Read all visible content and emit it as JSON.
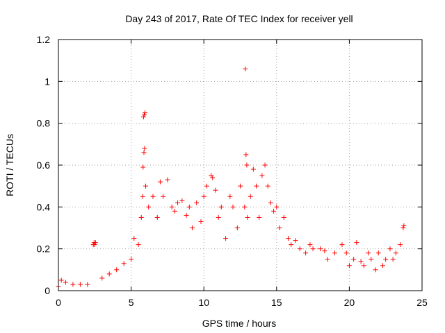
{
  "chart_data": {
    "type": "scatter",
    "title": "Day 243 of 2017, Rate Of TEC Index for receiver yell",
    "xlabel": "GPS time / hours",
    "ylabel": "ROTI / TECUs",
    "xlim": [
      0,
      25
    ],
    "ylim": [
      0,
      1.2
    ],
    "xticks": [
      "0",
      "5",
      "10",
      "15",
      "20",
      "25"
    ],
    "yticks": [
      "0",
      "0.2",
      "0.4",
      "0.6",
      "0.8",
      "1",
      "1.2"
    ],
    "grid": true,
    "marker": "plus",
    "series_color": "#ff0000",
    "series": [
      {
        "x": [
          0.0,
          0.2,
          0.5,
          1.0,
          1.5,
          2.0,
          2.4,
          2.45,
          2.5,
          2.55,
          3.0,
          3.5,
          4.0,
          4.5,
          5.0,
          5.2,
          5.5,
          5.7,
          5.8,
          5.85,
          5.9,
          5.95,
          5.82,
          5.88,
          5.92,
          6.0,
          6.2,
          6.5,
          6.8,
          7.0,
          7.2,
          7.5,
          7.8,
          8.0,
          8.2,
          8.5,
          8.8,
          9.0,
          9.2,
          9.5,
          9.8,
          10.0,
          10.2,
          10.5,
          10.6,
          10.8,
          11.0,
          11.2,
          11.5,
          11.8,
          12.0,
          12.3,
          12.5,
          12.8,
          12.85,
          12.9,
          12.95,
          13.0,
          13.2,
          13.4,
          13.6,
          13.8,
          14.0,
          14.2,
          14.4,
          14.6,
          14.8,
          15.0,
          15.2,
          15.5,
          15.8,
          16.0,
          16.3,
          16.6,
          17.0,
          17.3,
          17.5,
          18.0,
          18.3,
          18.5,
          19.0,
          19.5,
          19.8,
          20.0,
          20.3,
          20.5,
          20.8,
          21.0,
          21.3,
          21.5,
          21.8,
          22.0,
          22.3,
          22.5,
          22.8,
          23.0,
          23.2,
          23.5,
          23.7,
          23.75
        ],
        "y": [
          0.02,
          0.05,
          0.04,
          0.03,
          0.03,
          0.03,
          0.22,
          0.23,
          0.22,
          0.23,
          0.06,
          0.08,
          0.1,
          0.13,
          0.15,
          0.25,
          0.22,
          0.35,
          0.45,
          0.83,
          0.84,
          0.85,
          0.59,
          0.66,
          0.68,
          0.5,
          0.4,
          0.45,
          0.35,
          0.52,
          0.45,
          0.53,
          0.4,
          0.38,
          0.42,
          0.43,
          0.36,
          0.4,
          0.3,
          0.42,
          0.33,
          0.45,
          0.5,
          0.55,
          0.54,
          0.48,
          0.35,
          0.4,
          0.25,
          0.45,
          0.4,
          0.3,
          0.5,
          0.4,
          1.06,
          0.65,
          0.6,
          0.35,
          0.45,
          0.58,
          0.5,
          0.35,
          0.55,
          0.6,
          0.5,
          0.42,
          0.38,
          0.4,
          0.3,
          0.35,
          0.25,
          0.22,
          0.24,
          0.2,
          0.18,
          0.22,
          0.2,
          0.2,
          0.19,
          0.15,
          0.18,
          0.22,
          0.18,
          0.12,
          0.15,
          0.23,
          0.14,
          0.12,
          0.18,
          0.15,
          0.1,
          0.18,
          0.12,
          0.15,
          0.2,
          0.15,
          0.18,
          0.22,
          0.3,
          0.31
        ]
      }
    ]
  }
}
